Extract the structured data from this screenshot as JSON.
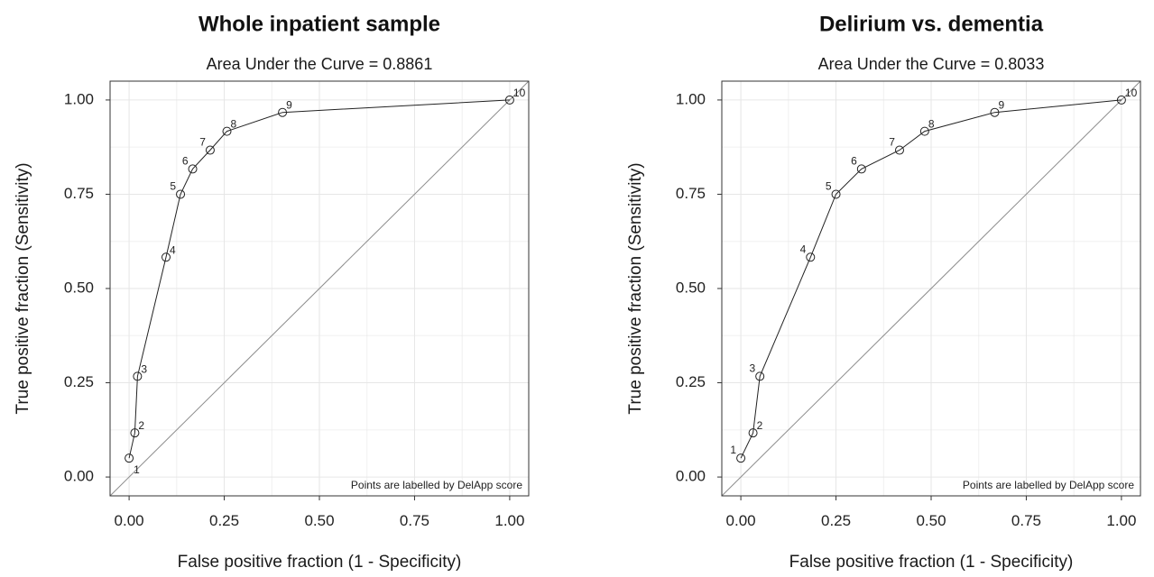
{
  "chart_data": [
    {
      "type": "line",
      "title": "Whole inpatient sample",
      "subtitle": "Area Under the Curve = 0.8861",
      "xlabel": "False positive fraction (1 - Specificity)",
      "ylabel": "True positive fraction (Sensitivity)",
      "caption": "Points are labelled by DelApp score",
      "xlim": [
        -0.05,
        1.05
      ],
      "ylim": [
        -0.05,
        1.05
      ],
      "xticks": [
        "0.00",
        "0.25",
        "0.50",
        "0.75",
        "1.00"
      ],
      "yticks": [
        "0.00",
        "0.25",
        "0.50",
        "0.75",
        "1.00"
      ],
      "grid": true,
      "reference_line": "y = x",
      "points": [
        {
          "label": "1",
          "x": 0.0,
          "y": 0.05
        },
        {
          "label": "2",
          "x": 0.015,
          "y": 0.117
        },
        {
          "label": "3",
          "x": 0.022,
          "y": 0.267
        },
        {
          "label": "4",
          "x": 0.097,
          "y": 0.583
        },
        {
          "label": "5",
          "x": 0.135,
          "y": 0.75
        },
        {
          "label": "6",
          "x": 0.167,
          "y": 0.817
        },
        {
          "label": "7",
          "x": 0.213,
          "y": 0.867
        },
        {
          "label": "8",
          "x": 0.257,
          "y": 0.917
        },
        {
          "label": "9",
          "x": 0.403,
          "y": 0.967
        },
        {
          "label": "10",
          "x": 1.0,
          "y": 1.0
        }
      ]
    },
    {
      "type": "line",
      "title": "Delirium vs. dementia",
      "subtitle": "Area Under the Curve = 0.8033",
      "xlabel": "False positive fraction (1 - Specificity)",
      "ylabel": "True positive fraction (Sensitivity)",
      "caption": "Points are labelled by DelApp score",
      "xlim": [
        -0.05,
        1.05
      ],
      "ylim": [
        -0.05,
        1.05
      ],
      "xticks": [
        "0.00",
        "0.25",
        "0.50",
        "0.75",
        "1.00"
      ],
      "yticks": [
        "0.00",
        "0.25",
        "0.50",
        "0.75",
        "1.00"
      ],
      "grid": true,
      "reference_line": "y = x",
      "points": [
        {
          "label": "1",
          "x": 0.0,
          "y": 0.05
        },
        {
          "label": "2",
          "x": 0.032,
          "y": 0.117
        },
        {
          "label": "3",
          "x": 0.05,
          "y": 0.267
        },
        {
          "label": "4",
          "x": 0.183,
          "y": 0.583
        },
        {
          "label": "5",
          "x": 0.25,
          "y": 0.75
        },
        {
          "label": "6",
          "x": 0.317,
          "y": 0.817
        },
        {
          "label": "7",
          "x": 0.417,
          "y": 0.867
        },
        {
          "label": "8",
          "x": 0.483,
          "y": 0.917
        },
        {
          "label": "9",
          "x": 0.667,
          "y": 0.967
        },
        {
          "label": "10",
          "x": 1.0,
          "y": 1.0
        }
      ]
    }
  ]
}
